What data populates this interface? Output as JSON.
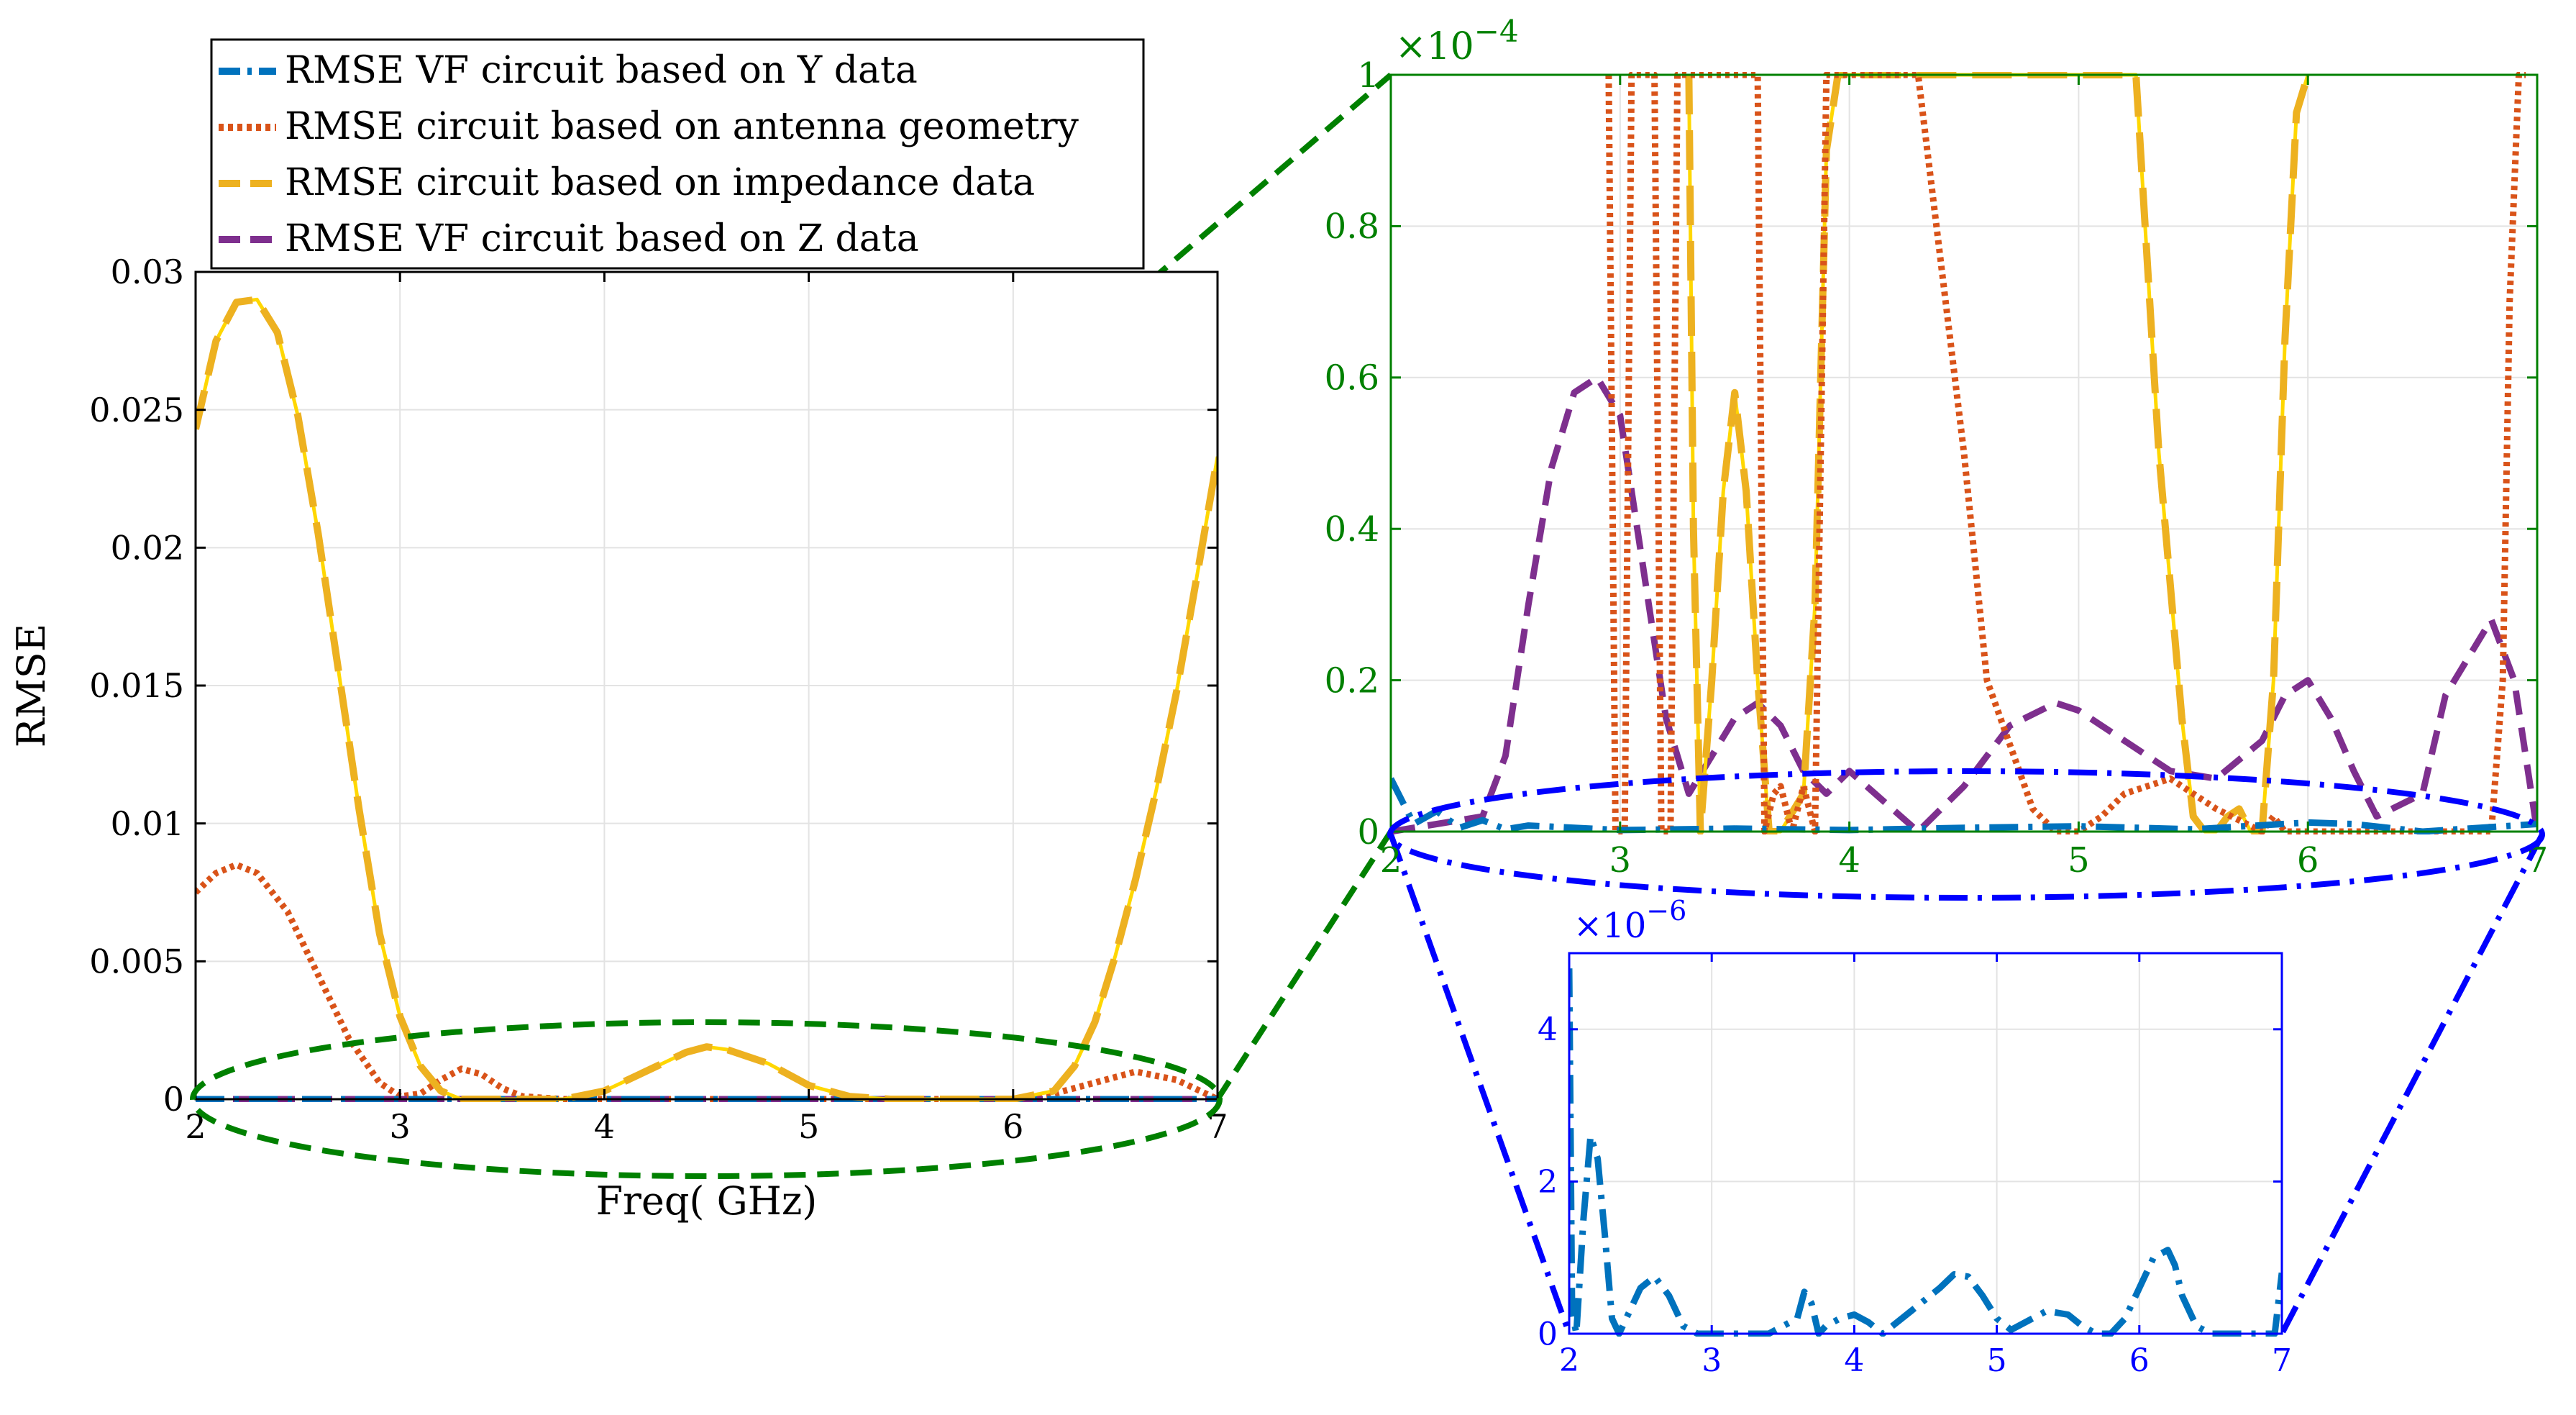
{
  "legend": {
    "entries": [
      "RMSE VF circuit based on Y data",
      "RMSE circuit based on antenna geometry",
      "RMSE circuit based on impedance data",
      "RMSE VF circuit based on Z data"
    ]
  },
  "colors": {
    "y_vf": "#0072bd",
    "antenna": "#d95319",
    "impedance": "#edb120",
    "impedance_bright": "#ffd700",
    "z_vf": "#7e2f8e",
    "zoom1": "#008000",
    "zoom2": "#0000ff"
  },
  "chart_data": [
    {
      "id": "main",
      "type": "line",
      "xlabel": "Freq( GHz)",
      "ylabel": "RMSE",
      "xlim": [
        2,
        7
      ],
      "ylim": [
        0,
        0.03
      ],
      "xticks": [
        "2",
        "3",
        "4",
        "5",
        "6",
        "7"
      ],
      "yticks": [
        "0",
        "0.005",
        "0.01",
        "0.015",
        "0.02",
        "0.025",
        "0.03"
      ],
      "grid": true,
      "legend_position": "top, above axes",
      "series": [
        {
          "name": "RMSE VF circuit based on Y data",
          "style": "dash-dot",
          "x": [
            2,
            7
          ],
          "y": [
            0,
            0
          ]
        },
        {
          "name": "RMSE circuit based on antenna geometry",
          "style": "dotted",
          "x": [
            2,
            2.1,
            2.2,
            2.3,
            2.45,
            2.6,
            2.75,
            2.9,
            3.0,
            3.1,
            3.2,
            3.3,
            3.4,
            3.5,
            3.6,
            3.8,
            4.0,
            4.5,
            5.0,
            5.5,
            5.8,
            6.0,
            6.2,
            6.4,
            6.6,
            6.8,
            7.0
          ],
          "y": [
            0.0075,
            0.0082,
            0.0085,
            0.0082,
            0.0068,
            0.0045,
            0.0022,
            0.0006,
            0.0001,
            0.0002,
            0.0007,
            0.0011,
            0.0009,
            0.0004,
            0.0001,
            0.0,
            0.0,
            0.0,
            0.0,
            0.0,
            0.0,
            0.0,
            0.0002,
            0.0006,
            0.001,
            0.0007,
            0.0
          ]
        },
        {
          "name": "RMSE circuit based on impedance data",
          "style": "long-dash",
          "x": [
            2.0,
            2.1,
            2.2,
            2.3,
            2.4,
            2.5,
            2.6,
            2.7,
            2.8,
            2.9,
            3.0,
            3.1,
            3.2,
            3.3,
            3.4,
            3.6,
            3.8,
            4.0,
            4.2,
            4.4,
            4.5,
            4.6,
            4.8,
            5.0,
            5.2,
            5.4,
            5.6,
            6.0,
            6.2,
            6.3,
            6.4,
            6.5,
            6.6,
            6.7,
            6.8,
            6.9,
            7.0
          ],
          "y": [
            0.0243,
            0.0275,
            0.0289,
            0.029,
            0.0278,
            0.0248,
            0.0205,
            0.0155,
            0.0105,
            0.006,
            0.003,
            0.0012,
            0.0003,
            0.0,
            0.0,
            0.0,
            0.0,
            0.0003,
            0.001,
            0.0017,
            0.0019,
            0.0018,
            0.0013,
            0.0005,
            0.0001,
            0.0,
            0.0,
            0.0,
            0.0003,
            0.0012,
            0.0028,
            0.0052,
            0.008,
            0.0112,
            0.0148,
            0.019,
            0.0233
          ]
        },
        {
          "name": "RMSE VF circuit based on Z data",
          "style": "dash",
          "x": [
            2,
            7
          ],
          "y": [
            0,
            0
          ]
        }
      ]
    },
    {
      "id": "zoom1",
      "type": "line",
      "exponent_label": "×10",
      "exponent_power": "−4",
      "xlim": [
        2,
        7
      ],
      "ylim": [
        0,
        1
      ],
      "xticks": [
        "2",
        "3",
        "4",
        "5",
        "6",
        "7"
      ],
      "yticks": [
        "0",
        "0.2",
        "0.4",
        "0.6",
        "0.8",
        "1"
      ],
      "grid": true,
      "series": [
        {
          "name": "RMSE VF circuit based on Y data",
          "style": "dash-dot",
          "x": [
            2.0,
            2.1,
            2.2,
            2.3,
            2.4,
            2.5,
            2.6,
            3.0,
            3.5,
            4.0,
            4.5,
            5.0,
            5.5,
            6.0,
            6.2,
            6.5,
            7.0
          ],
          "y": [
            0.07,
            0.01,
            0.027,
            0.005,
            0.015,
            0.003,
            0.008,
            0.002,
            0.004,
            0.002,
            0.005,
            0.007,
            0.003,
            0.012,
            0.01,
            0.0,
            0.01
          ]
        },
        {
          "name": "RMSE circuit based on antenna geometry",
          "style": "dotted",
          "x": [
            2.95,
            2.98,
            3.02,
            3.05,
            3.15,
            3.18,
            3.22,
            3.25,
            3.6,
            3.63,
            3.67,
            3.7,
            3.75,
            3.8,
            3.85,
            3.9,
            3.95,
            4.05,
            4.1,
            4.15,
            4.3,
            4.5,
            4.6,
            4.8,
            4.9,
            5.0,
            5.1,
            5.2,
            5.4,
            5.6,
            5.8,
            5.85,
            5.9,
            6.0,
            6.8,
            6.85,
            6.88,
            6.92,
            6.95
          ],
          "y": [
            1.0,
            0.0,
            0.0,
            1.0,
            1.0,
            0.0,
            0.0,
            1.0,
            1.0,
            0.0,
            0.05,
            0.06,
            0.0,
            0.06,
            0.0,
            1.0,
            1.0,
            1.0,
            1.0,
            1.0,
            1.0,
            0.5,
            0.2,
            0.03,
            0.0,
            0.0,
            0.02,
            0.05,
            0.07,
            0.03,
            0.0,
            0.02,
            0.0,
            0.0,
            0.0,
            0.2,
            0.7,
            1.0,
            1.0
          ]
        },
        {
          "name": "RMSE circuit based on impedance data",
          "style": "long-dash",
          "x": [
            3.3,
            3.32,
            3.35,
            3.4,
            3.45,
            3.5,
            3.55,
            3.6,
            3.65,
            3.7,
            3.8,
            3.85,
            3.9,
            3.95,
            5.25,
            5.35,
            5.45,
            5.5,
            5.55,
            5.6,
            5.65,
            5.7,
            5.75,
            5.8,
            5.85,
            5.9,
            5.95,
            6.0
          ],
          "y": [
            1.0,
            0.4,
            0.0,
            0.2,
            0.45,
            0.58,
            0.45,
            0.2,
            0.0,
            0.0,
            0.05,
            0.3,
            0.9,
            1.0,
            1.0,
            0.5,
            0.15,
            0.02,
            0.0,
            0.0,
            0.02,
            0.03,
            0.0,
            0.0,
            0.2,
            0.65,
            0.95,
            1.0
          ]
        },
        {
          "name": "RMSE VF circuit based on Z data",
          "style": "dash",
          "x": [
            2.0,
            2.2,
            2.4,
            2.5,
            2.6,
            2.7,
            2.8,
            2.9,
            3.0,
            3.1,
            3.2,
            3.3,
            3.5,
            3.6,
            3.7,
            3.8,
            3.9,
            4.0,
            4.3,
            4.5,
            4.7,
            4.9,
            5.0,
            5.2,
            5.4,
            5.6,
            5.8,
            5.9,
            6.0,
            6.1,
            6.2,
            6.3,
            6.5,
            6.6,
            6.8,
            6.9,
            7.0
          ],
          "y": [
            0.0,
            0.01,
            0.02,
            0.1,
            0.3,
            0.48,
            0.58,
            0.6,
            0.55,
            0.35,
            0.15,
            0.05,
            0.15,
            0.17,
            0.14,
            0.08,
            0.05,
            0.08,
            0.0,
            0.06,
            0.14,
            0.17,
            0.16,
            0.12,
            0.08,
            0.07,
            0.12,
            0.18,
            0.2,
            0.15,
            0.08,
            0.02,
            0.05,
            0.18,
            0.28,
            0.2,
            0.0
          ]
        }
      ]
    },
    {
      "id": "zoom2",
      "type": "line",
      "exponent_label": "×10",
      "exponent_power": "−6",
      "xlim": [
        2,
        7
      ],
      "ylim": [
        0,
        5
      ],
      "xticks": [
        "2",
        "3",
        "4",
        "5",
        "6",
        "7"
      ],
      "yticks": [
        "0",
        "2",
        "4"
      ],
      "grid": true,
      "series": [
        {
          "name": "RMSE VF circuit based on Y data",
          "style": "dash-dot",
          "x": [
            2.0,
            2.02,
            2.05,
            2.1,
            2.15,
            2.2,
            2.25,
            2.3,
            2.35,
            2.4,
            2.5,
            2.6,
            2.7,
            2.8,
            2.9,
            3.0,
            3.2,
            3.4,
            3.6,
            3.65,
            3.7,
            3.75,
            3.8,
            3.9,
            4.0,
            4.1,
            4.2,
            4.4,
            4.6,
            4.7,
            4.8,
            4.9,
            5.0,
            5.1,
            5.2,
            5.35,
            5.5,
            5.6,
            5.7,
            5.8,
            5.9,
            6.0,
            6.1,
            6.2,
            6.25,
            6.3,
            6.4,
            6.5,
            6.6,
            6.8,
            6.95,
            7.0
          ],
          "y": [
            4.8,
            0.3,
            0.0,
            1.5,
            2.6,
            2.3,
            1.3,
            0.2,
            0.0,
            0.2,
            0.6,
            0.75,
            0.5,
            0.1,
            0.0,
            0.0,
            0.0,
            0.0,
            0.2,
            0.55,
            0.4,
            0.0,
            0.1,
            0.2,
            0.25,
            0.15,
            0.0,
            0.3,
            0.6,
            0.78,
            0.75,
            0.5,
            0.2,
            0.05,
            0.15,
            0.3,
            0.25,
            0.1,
            0.0,
            0.0,
            0.2,
            0.6,
            1.0,
            1.1,
            0.9,
            0.5,
            0.1,
            0.0,
            0.0,
            0.0,
            0.0,
            0.8
          ]
        }
      ]
    }
  ]
}
